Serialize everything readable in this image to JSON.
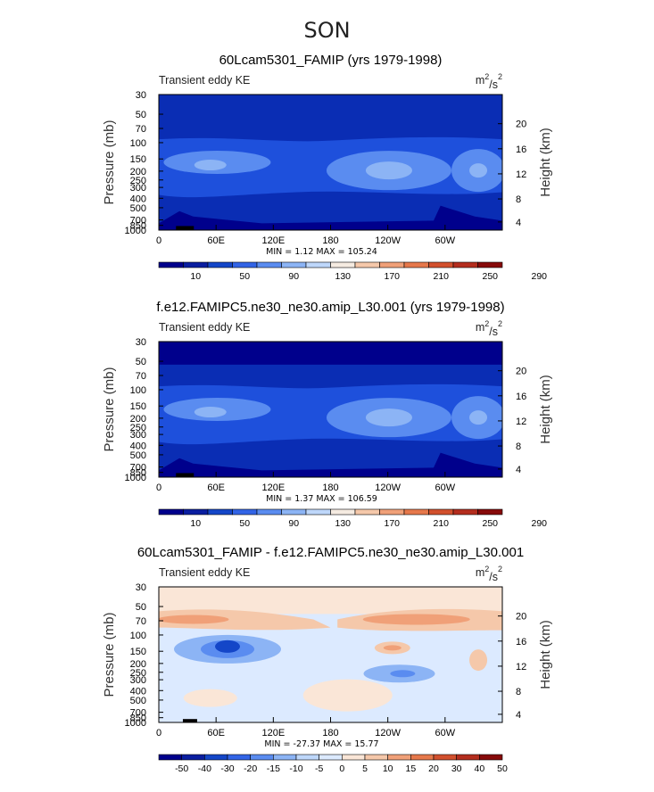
{
  "figure": {
    "season": "SON"
  },
  "chart_data": [
    {
      "type": "heatmap",
      "title": "60Lcam5301_FAMIP (yrs 1979-1998)",
      "left_label": "Transient eddy KE",
      "units_base": "m",
      "units_exp1": "2",
      "units_mid": "/s",
      "units_exp2": "2",
      "ylabel": "Pressure (mb)",
      "ylabel_right": "Height (km)",
      "y_ticks": [
        "30",
        "50",
        "70",
        "100",
        "150",
        "200",
        "250",
        "300",
        "400",
        "500",
        "700",
        "850",
        "1000"
      ],
      "y_ticks_right": [
        "20",
        "16",
        "12",
        "8",
        "4"
      ],
      "x_ticks": [
        "0",
        "60E",
        "120E",
        "180",
        "120W",
        "60W"
      ],
      "stats": "MIN =    1.12  MAX = 105.24",
      "colorbar": {
        "labels": [
          "10",
          "50",
          "90",
          "130",
          "170",
          "210",
          "250",
          "290"
        ],
        "colors": [
          "#00008c",
          "#0a1ea0",
          "#1446c8",
          "#3264e6",
          "#5a8cf0",
          "#8cb4f5",
          "#bed7fa",
          "#f5ebe1",
          "#f5c8aa",
          "#f0a078",
          "#e6784b",
          "#d2502d",
          "#b42d1e",
          "#870a0a"
        ]
      },
      "features": {
        "base": "#0a2db4",
        "jet": "#1e50dc",
        "core": "#5a8cf0",
        "peak": "#8cb4f5",
        "surface": "#00008c"
      }
    },
    {
      "type": "heatmap",
      "title": "f.e12.FAMIPC5.ne30_ne30.amip_L30.001 (yrs 1979-1998)",
      "left_label": "Transient eddy KE",
      "units_base": "m",
      "units_exp1": "2",
      "units_mid": "/s",
      "units_exp2": "2",
      "ylabel": "Pressure (mb)",
      "ylabel_right": "Height (km)",
      "y_ticks": [
        "30",
        "50",
        "70",
        "100",
        "150",
        "200",
        "250",
        "300",
        "400",
        "500",
        "700",
        "850",
        "1000"
      ],
      "y_ticks_right": [
        "20",
        "16",
        "12",
        "8",
        "4"
      ],
      "x_ticks": [
        "0",
        "60E",
        "120E",
        "180",
        "120W",
        "60W"
      ],
      "stats": "MIN =    1.37  MAX = 106.59",
      "colorbar": {
        "labels": [
          "10",
          "50",
          "90",
          "130",
          "170",
          "210",
          "250",
          "290"
        ],
        "colors": [
          "#00008c",
          "#0a1ea0",
          "#1446c8",
          "#3264e6",
          "#5a8cf0",
          "#8cb4f5",
          "#bed7fa",
          "#f5ebe1",
          "#f5c8aa",
          "#f0a078",
          "#e6784b",
          "#d2502d",
          "#b42d1e",
          "#870a0a"
        ]
      },
      "features": {
        "base": "#0a2db4",
        "jet": "#1e50dc",
        "core": "#5a8cf0",
        "peak": "#8cb4f5",
        "surface": "#00008c"
      }
    },
    {
      "type": "heatmap",
      "title": "60Lcam5301_FAMIP - f.e12.FAMIPC5.ne30_ne30.amip_L30.001",
      "left_label": "Transient eddy KE",
      "units_base": "m",
      "units_exp1": "2",
      "units_mid": "/s",
      "units_exp2": "2",
      "ylabel": "Pressure (mb)",
      "ylabel_right": "Height (km)",
      "y_ticks": [
        "30",
        "50",
        "70",
        "100",
        "150",
        "200",
        "250",
        "300",
        "400",
        "500",
        "700",
        "850",
        "1000"
      ],
      "y_ticks_right": [
        "20",
        "16",
        "12",
        "8",
        "4"
      ],
      "x_ticks": [
        "0",
        "60E",
        "120E",
        "180",
        "120W",
        "60W"
      ],
      "stats": "MIN = -27.37  MAX =   15.77",
      "colorbar": {
        "labels": [
          "-50",
          "-40",
          "-30",
          "-20",
          "-15",
          "-10",
          "-5",
          "0",
          "5",
          "10",
          "15",
          "20",
          "30",
          "40",
          "50"
        ],
        "colors": [
          "#00008c",
          "#0a1ea0",
          "#1446c8",
          "#3264e6",
          "#5a8cf0",
          "#8cb4f5",
          "#bed7fa",
          "#dceaff",
          "#fae6d7",
          "#f5c8aa",
          "#f0a078",
          "#e6784b",
          "#d2502d",
          "#b42d1e",
          "#870a0a"
        ]
      },
      "features": {
        "base": "#dceaff",
        "top": "#fae6d7",
        "warm": "#f5c8aa",
        "warm2": "#f0a078",
        "cool": "#8cb4f5",
        "cool2": "#5a8cf0",
        "cool3": "#1446c8"
      }
    }
  ]
}
